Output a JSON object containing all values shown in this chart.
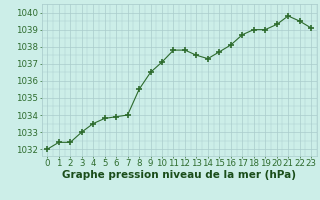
{
  "x": [
    0,
    1,
    2,
    3,
    4,
    5,
    6,
    7,
    8,
    9,
    10,
    11,
    12,
    13,
    14,
    15,
    16,
    17,
    18,
    19,
    20,
    21,
    22,
    23
  ],
  "y": [
    1032.0,
    1032.4,
    1032.4,
    1033.0,
    1033.5,
    1033.8,
    1033.9,
    1034.0,
    1035.5,
    1036.5,
    1037.1,
    1037.8,
    1037.8,
    1037.5,
    1037.3,
    1037.7,
    1038.1,
    1038.7,
    1039.0,
    1039.0,
    1039.3,
    1039.8,
    1039.5,
    1039.1
  ],
  "line_color": "#2d6b2d",
  "marker_color": "#2d6b2d",
  "bg_color": "#cceee8",
  "grid_color": "#aacccc",
  "xlabel": "Graphe pression niveau de la mer (hPa)",
  "xlabel_color": "#1a4d1a",
  "xlabel_fontsize": 7.5,
  "ylabel_ticks": [
    1032,
    1033,
    1034,
    1035,
    1036,
    1037,
    1038,
    1039,
    1040
  ],
  "ylim": [
    1031.6,
    1040.5
  ],
  "xlim": [
    -0.5,
    23.5
  ],
  "tick_fontsize": 6.2,
  "tick_color": "#2d6b2d"
}
